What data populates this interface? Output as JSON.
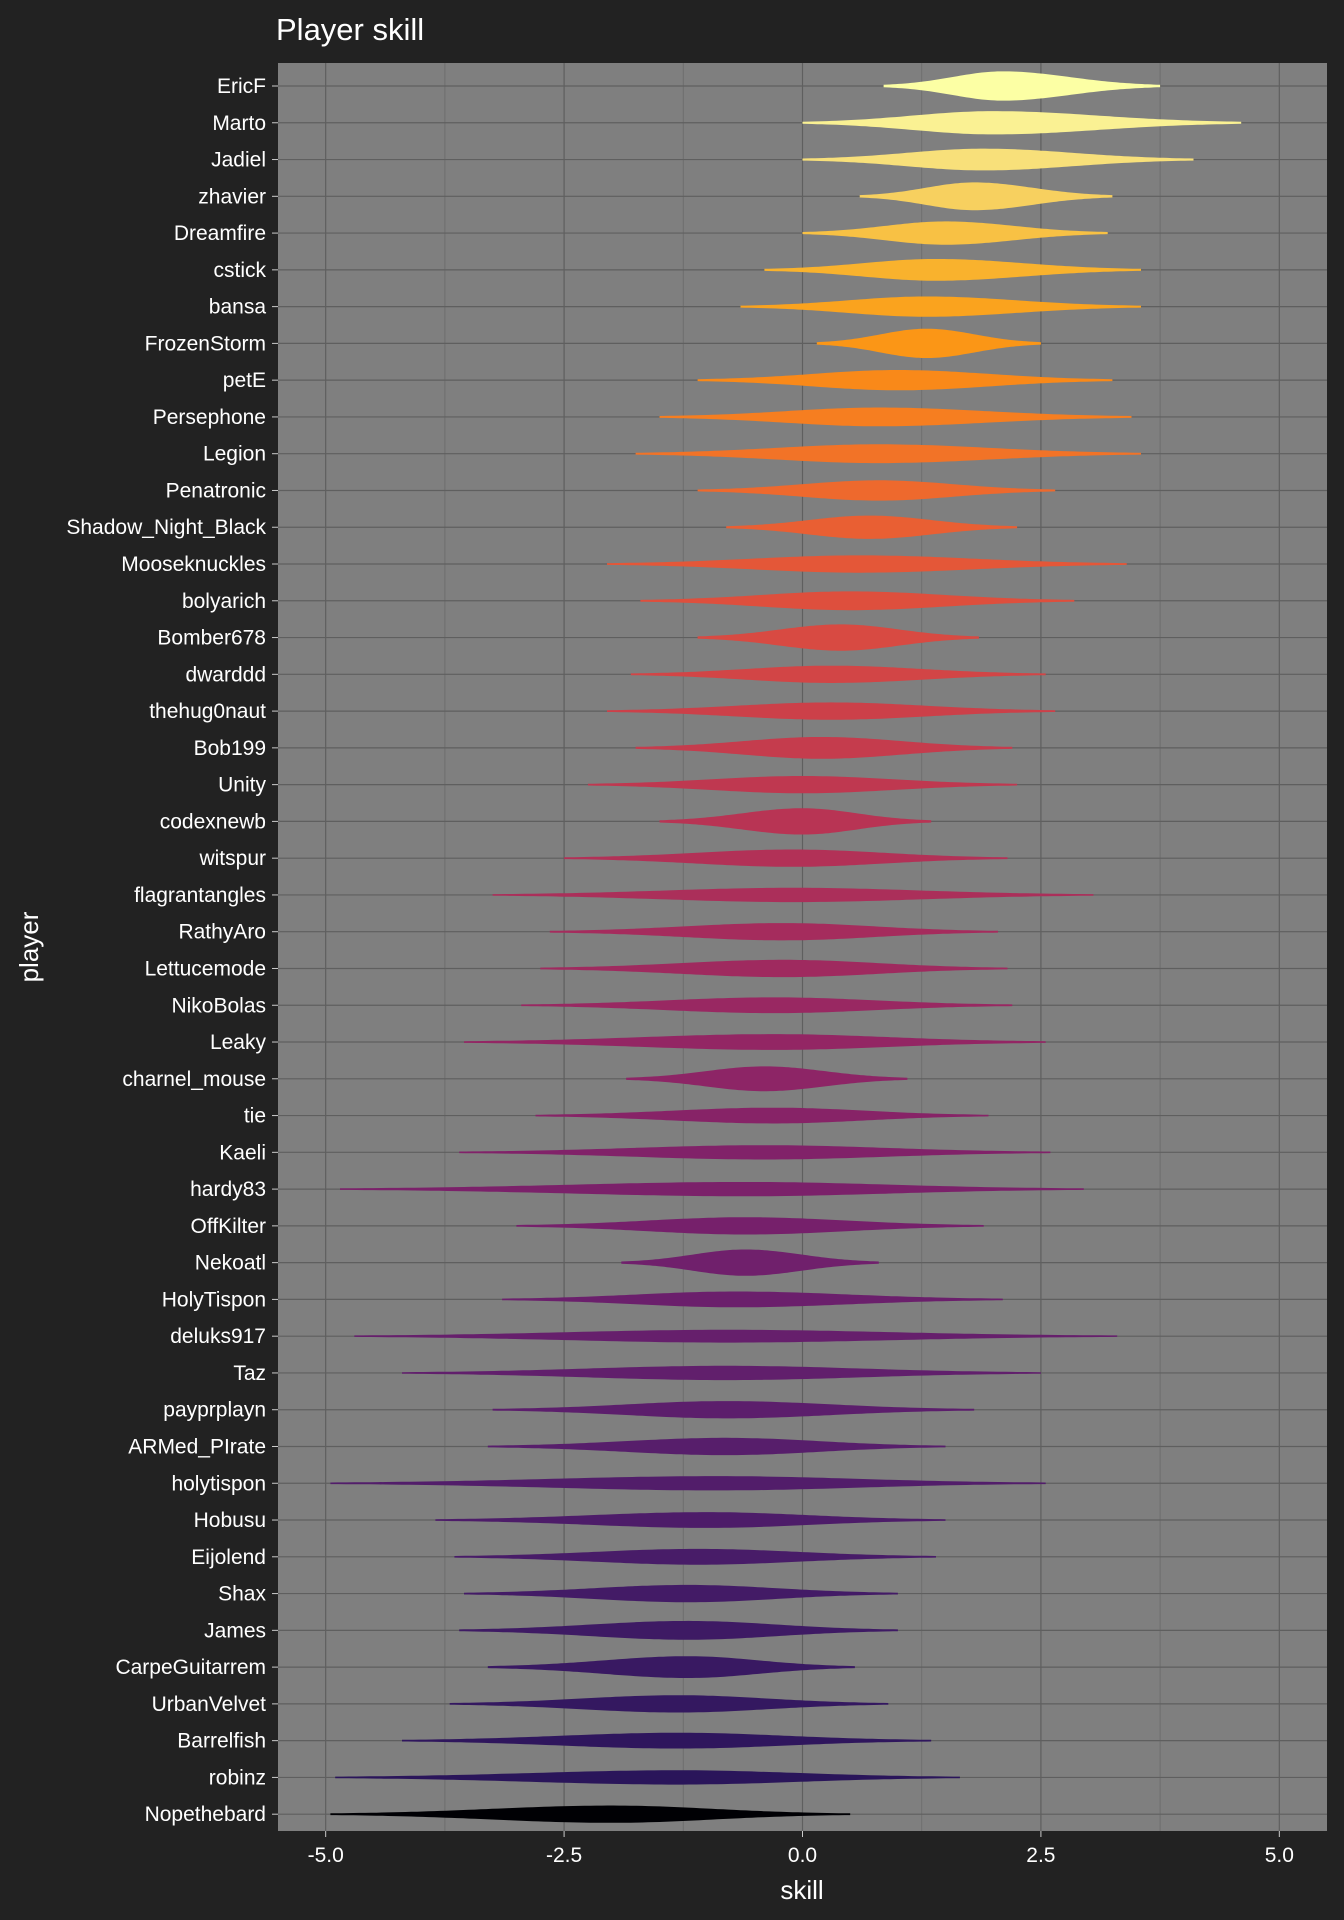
{
  "chart_data": {
    "type": "violin",
    "title": "Player skill",
    "xlabel": "skill",
    "ylabel": "player",
    "xlim": [
      -5.5,
      5.5
    ],
    "xticks": [
      -5.0,
      -2.5,
      0.0,
      2.5,
      5.0
    ],
    "xtick_labels": [
      "-5.0",
      "-2.5",
      "0.0",
      "2.5",
      "5.0"
    ],
    "grid": true,
    "background": "#222222",
    "panel_background": "#7f7f7f",
    "colormap": "inferno",
    "categories": [
      "EricF",
      "Marto",
      "Jadiel",
      "zhavier",
      "Dreamfire",
      "cstick",
      "bansa",
      "FrozenStorm",
      "petE",
      "Persephone",
      "Legion",
      "Penatronic",
      "Shadow_Night_Black",
      "Mooseknuckles",
      "bolyarich",
      "Bomber678",
      "dwarddd",
      "thehug0naut",
      "Bob199",
      "Unity",
      "codexnewb",
      "witspur",
      "flagrantangles",
      "RathyAro",
      "Lettucemode",
      "NikoBolas",
      "Leaky",
      "charnel_mouse",
      "tie",
      "Kaeli",
      "hardy83",
      "OffKilter",
      "Nekoatl",
      "HolyTispon",
      "deluks917",
      "Taz",
      "payprplayn",
      "ARMed_PIrate",
      "holytispon",
      "Hobusu",
      "Eijolend",
      "Shax",
      "James",
      "CarpeGuitarrem",
      "UrbanVelvet",
      "Barrelfish",
      "robinz",
      "Nopethebard"
    ],
    "series": [
      {
        "player": "EricF",
        "center": 2.1,
        "min": 0.85,
        "max": 3.75,
        "peak": 0.95,
        "color": "#fcffa4"
      },
      {
        "player": "Marto",
        "center": 2.0,
        "min": 0.0,
        "max": 4.6,
        "peak": 0.75,
        "color": "#faf193"
      },
      {
        "player": "Jadiel",
        "center": 1.9,
        "min": 0.0,
        "max": 4.1,
        "peak": 0.7,
        "color": "#f8e07a"
      },
      {
        "player": "zhavier",
        "center": 1.8,
        "min": 0.6,
        "max": 3.25,
        "peak": 0.9,
        "color": "#f7d05f"
      },
      {
        "player": "Dreamfire",
        "center": 1.5,
        "min": 0.0,
        "max": 3.2,
        "peak": 0.75,
        "color": "#f8c144"
      },
      {
        "player": "cstick",
        "center": 1.4,
        "min": -0.4,
        "max": 3.55,
        "peak": 0.7,
        "color": "#f9b22d"
      },
      {
        "player": "bansa",
        "center": 1.3,
        "min": -0.65,
        "max": 3.55,
        "peak": 0.65,
        "color": "#faa31e"
      },
      {
        "player": "FrozenStorm",
        "center": 1.3,
        "min": 0.15,
        "max": 2.5,
        "peak": 0.95,
        "color": "#fb9616"
      },
      {
        "player": "petE",
        "center": 1.0,
        "min": -1.1,
        "max": 3.25,
        "peak": 0.65,
        "color": "#f98919"
      },
      {
        "player": "Persephone",
        "center": 0.8,
        "min": -1.5,
        "max": 3.45,
        "peak": 0.6,
        "color": "#f67e20"
      },
      {
        "player": "Legion",
        "center": 0.8,
        "min": -1.75,
        "max": 3.55,
        "peak": 0.6,
        "color": "#f27327"
      },
      {
        "player": "Penatronic",
        "center": 0.8,
        "min": -1.1,
        "max": 2.65,
        "peak": 0.65,
        "color": "#ee692d"
      },
      {
        "player": "Shadow_Night_Black",
        "center": 0.7,
        "min": -0.8,
        "max": 2.25,
        "peak": 0.75,
        "color": "#e95f33"
      },
      {
        "player": "Mooseknuckles",
        "center": 0.6,
        "min": -2.05,
        "max": 3.4,
        "peak": 0.55,
        "color": "#e45738"
      },
      {
        "player": "bolyarich",
        "center": 0.5,
        "min": -1.7,
        "max": 2.85,
        "peak": 0.6,
        "color": "#de4f3d"
      },
      {
        "player": "Bomber678",
        "center": 0.4,
        "min": -1.1,
        "max": 1.85,
        "peak": 0.85,
        "color": "#d84a42"
      },
      {
        "player": "dwarddd",
        "center": 0.3,
        "min": -1.8,
        "max": 2.55,
        "peak": 0.55,
        "color": "#d24546"
      },
      {
        "player": "thehug0naut",
        "center": 0.3,
        "min": -2.05,
        "max": 2.65,
        "peak": 0.55,
        "color": "#cc4049"
      },
      {
        "player": "Bob199",
        "center": 0.2,
        "min": -1.75,
        "max": 2.2,
        "peak": 0.7,
        "color": "#c53c4d"
      },
      {
        "player": "Unity",
        "center": 0.0,
        "min": -2.25,
        "max": 2.25,
        "peak": 0.55,
        "color": "#bf3850"
      },
      {
        "player": "codexnewb",
        "center": 0.0,
        "min": -1.5,
        "max": 1.35,
        "peak": 0.85,
        "color": "#b83454"
      },
      {
        "player": "witspur",
        "center": -0.1,
        "min": -2.5,
        "max": 2.15,
        "peak": 0.55,
        "color": "#b23157"
      },
      {
        "player": "flagrantangles",
        "center": -0.1,
        "min": -3.25,
        "max": 3.05,
        "peak": 0.45,
        "color": "#ab2f5a"
      },
      {
        "player": "RathyAro",
        "center": -0.2,
        "min": -2.65,
        "max": 2.05,
        "peak": 0.55,
        "color": "#a52c5d"
      },
      {
        "player": "Lettucemode",
        "center": -0.2,
        "min": -2.75,
        "max": 2.15,
        "peak": 0.55,
        "color": "#9f2a5f"
      },
      {
        "player": "NikoBolas",
        "center": -0.3,
        "min": -2.95,
        "max": 2.2,
        "peak": 0.5,
        "color": "#992862"
      },
      {
        "player": "Leaky",
        "center": -0.3,
        "min": -3.55,
        "max": 2.55,
        "peak": 0.5,
        "color": "#932664"
      },
      {
        "player": "charnel_mouse",
        "center": -0.4,
        "min": -1.85,
        "max": 1.1,
        "peak": 0.8,
        "color": "#8d2566"
      },
      {
        "player": "tie",
        "center": -0.3,
        "min": -2.8,
        "max": 1.95,
        "peak": 0.5,
        "color": "#872367"
      },
      {
        "player": "Kaeli",
        "center": -0.4,
        "min": -3.6,
        "max": 2.6,
        "peak": 0.45,
        "color": "#812269"
      },
      {
        "player": "hardy83",
        "center": -0.6,
        "min": -4.85,
        "max": 2.95,
        "peak": 0.45,
        "color": "#7b216a"
      },
      {
        "player": "OffKilter",
        "center": -0.6,
        "min": -3.0,
        "max": 1.9,
        "peak": 0.55,
        "color": "#76206b"
      },
      {
        "player": "Nekoatl",
        "center": -0.6,
        "min": -1.9,
        "max": 0.8,
        "peak": 0.85,
        "color": "#70206c"
      },
      {
        "player": "HolyTispon",
        "center": -0.7,
        "min": -3.15,
        "max": 2.1,
        "peak": 0.5,
        "color": "#6b1f6c"
      },
      {
        "player": "deluks917",
        "center": -0.8,
        "min": -4.7,
        "max": 3.3,
        "peak": 0.4,
        "color": "#661f6c"
      },
      {
        "player": "Taz",
        "center": -0.8,
        "min": -4.2,
        "max": 2.5,
        "peak": 0.45,
        "color": "#611f6c"
      },
      {
        "player": "payprplayn",
        "center": -0.8,
        "min": -3.25,
        "max": 1.8,
        "peak": 0.55,
        "color": "#5c1e6c"
      },
      {
        "player": "ARMed_PIrate",
        "center": -0.8,
        "min": -3.3,
        "max": 1.5,
        "peak": 0.55,
        "color": "#571e6b"
      },
      {
        "player": "holytispon",
        "center": -0.9,
        "min": -4.95,
        "max": 2.55,
        "peak": 0.45,
        "color": "#521d6a"
      },
      {
        "player": "Hobusu",
        "center": -1.0,
        "min": -3.85,
        "max": 1.5,
        "peak": 0.5,
        "color": "#4d1c69"
      },
      {
        "player": "Eijolend",
        "center": -1.1,
        "min": -3.65,
        "max": 1.4,
        "peak": 0.5,
        "color": "#481c68"
      },
      {
        "player": "Shax",
        "center": -1.2,
        "min": -3.55,
        "max": 1.0,
        "peak": 0.55,
        "color": "#431b66"
      },
      {
        "player": "James",
        "center": -1.2,
        "min": -3.6,
        "max": 1.0,
        "peak": 0.6,
        "color": "#3e1a64"
      },
      {
        "player": "CarpeGuitarrem",
        "center": -1.2,
        "min": -3.3,
        "max": 0.55,
        "peak": 0.7,
        "color": "#391962"
      },
      {
        "player": "UrbanVelvet",
        "center": -1.3,
        "min": -3.7,
        "max": 0.9,
        "peak": 0.55,
        "color": "#341860"
      },
      {
        "player": "Barrelfish",
        "center": -1.3,
        "min": -4.2,
        "max": 1.35,
        "peak": 0.5,
        "color": "#2f165d"
      },
      {
        "player": "robinz",
        "center": -1.3,
        "min": -4.9,
        "max": 1.65,
        "peak": 0.45,
        "color": "#2a155a"
      },
      {
        "player": "Nopethebard",
        "center": -2.0,
        "min": -4.95,
        "max": 0.5,
        "peak": 0.55,
        "color": "#000004"
      }
    ]
  }
}
